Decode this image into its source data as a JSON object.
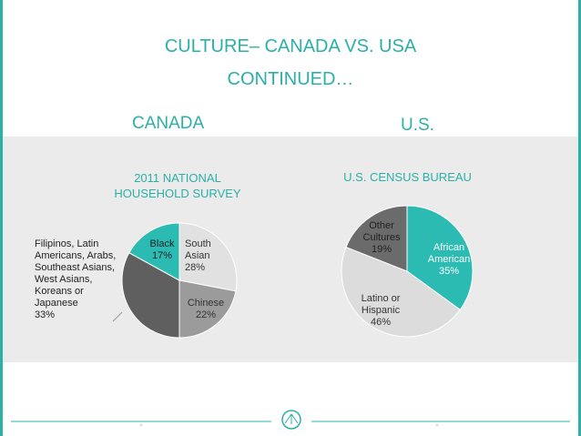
{
  "slide": {
    "title": [
      "CULTURE– CANADA VS. USA",
      "CONTINUED…"
    ],
    "headings": [
      "CANADA",
      "U.S."
    ]
  },
  "chart_data": [
    {
      "type": "pie",
      "title": "2011 NATIONAL HOUSEHOLD SURVEY",
      "categories": [
        "South Asian",
        "Chinese",
        "Filipinos, Latin Americans, Arabs, Southeast Asians, West Asians, Koreans or Japanese",
        "Black"
      ],
      "values": [
        28,
        22,
        33,
        17
      ],
      "value_labels": [
        "28%",
        "22%",
        "33%",
        "17%"
      ],
      "colors": [
        "#e1e1e1",
        "#9b9b9b",
        "#5f5f5f",
        "#2bbbb3"
      ]
    },
    {
      "type": "pie",
      "title": "U.S. CENSUS BUREAU",
      "categories": [
        "African American",
        "Latino or Hispanic",
        "Other Cultures"
      ],
      "values": [
        35,
        46,
        19
      ],
      "value_labels": [
        "35%",
        "46%",
        "19%"
      ],
      "colors": [
        "#2bbbb3",
        "#dcdcdc",
        "#6b6b6b"
      ]
    }
  ]
}
